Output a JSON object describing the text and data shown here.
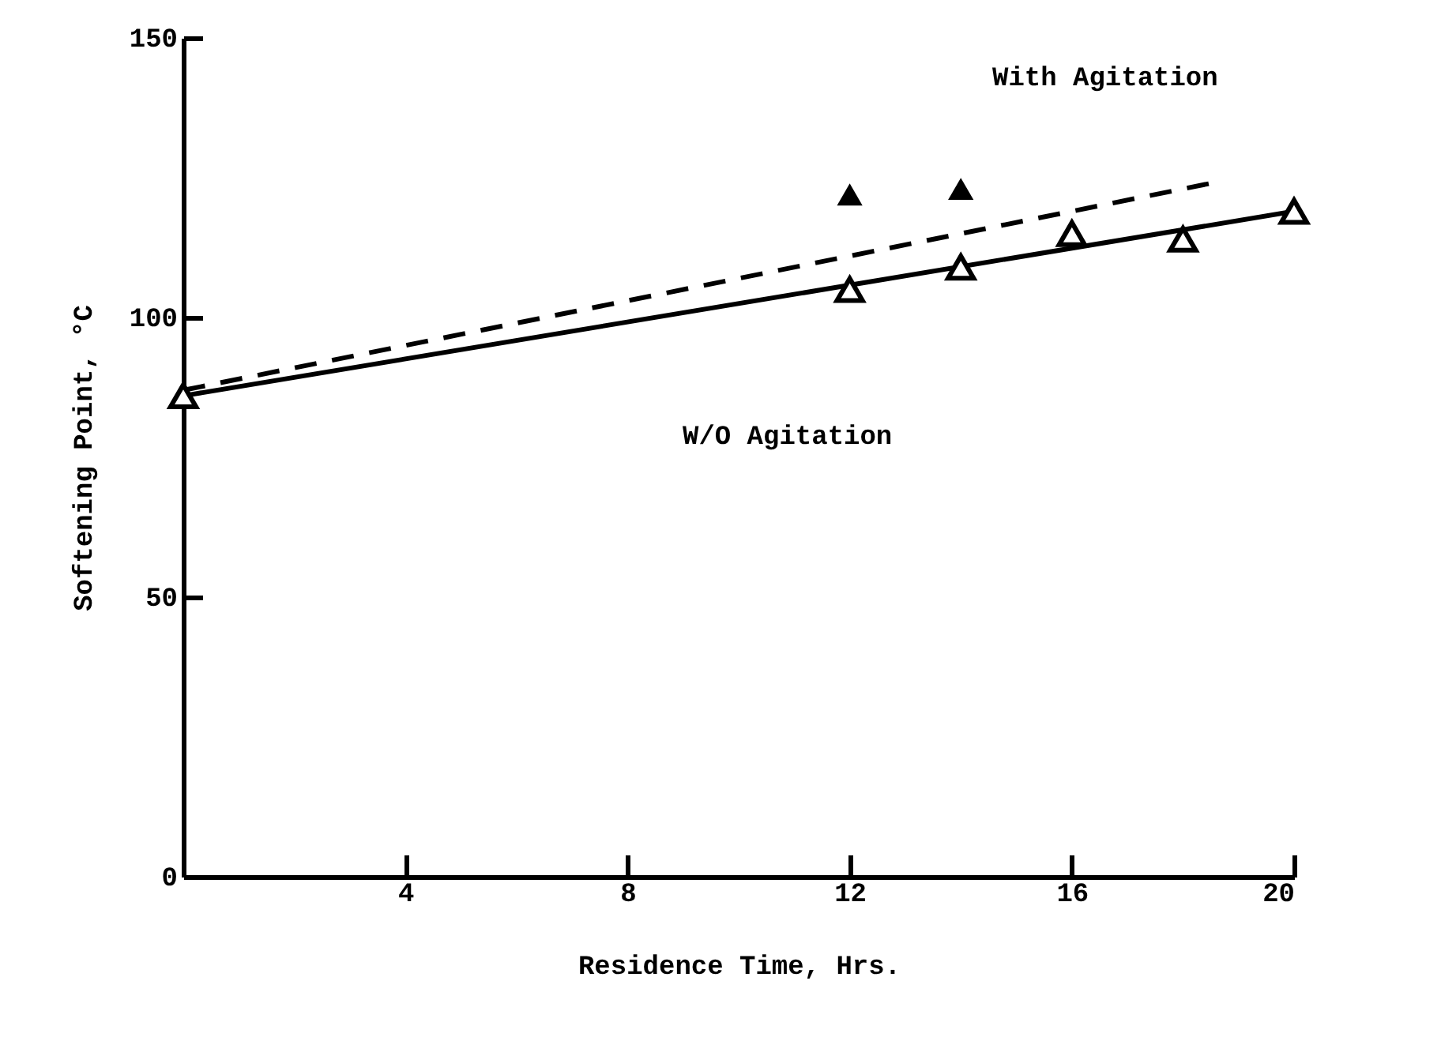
{
  "chart_data": {
    "type": "scatter",
    "xlabel": "Residence Time, Hrs.",
    "ylabel": "Softening Point, °C",
    "xlim": [
      0,
      20
    ],
    "xticks": [
      4,
      8,
      12,
      16,
      20
    ],
    "ylim": [
      0,
      150
    ],
    "yticks": [
      0,
      50,
      100,
      150
    ],
    "grid": false,
    "marker": "triangle",
    "series": [
      {
        "type": "line",
        "color": "#000000",
        "line_style": "solid",
        "marker": "none",
        "x": [
          0,
          20
        ],
        "values": [
          86,
          119
        ]
      },
      {
        "type": "line",
        "color": "#000000",
        "line_style": "dashed",
        "marker": "none",
        "x": [
          0,
          18.5
        ],
        "values": [
          87,
          124
        ]
      },
      {
        "color": "#000000",
        "x": [
          0,
          12,
          14,
          16,
          18,
          20
        ],
        "values": [
          86,
          105,
          109,
          115,
          114,
          119
        ]
      },
      {
        "color": "#000000",
        "x": [
          12,
          14
        ],
        "values": [
          122,
          123
        ]
      }
    ],
    "annotations": [
      "With Agitation",
      "W/O Agitation"
    ]
  }
}
